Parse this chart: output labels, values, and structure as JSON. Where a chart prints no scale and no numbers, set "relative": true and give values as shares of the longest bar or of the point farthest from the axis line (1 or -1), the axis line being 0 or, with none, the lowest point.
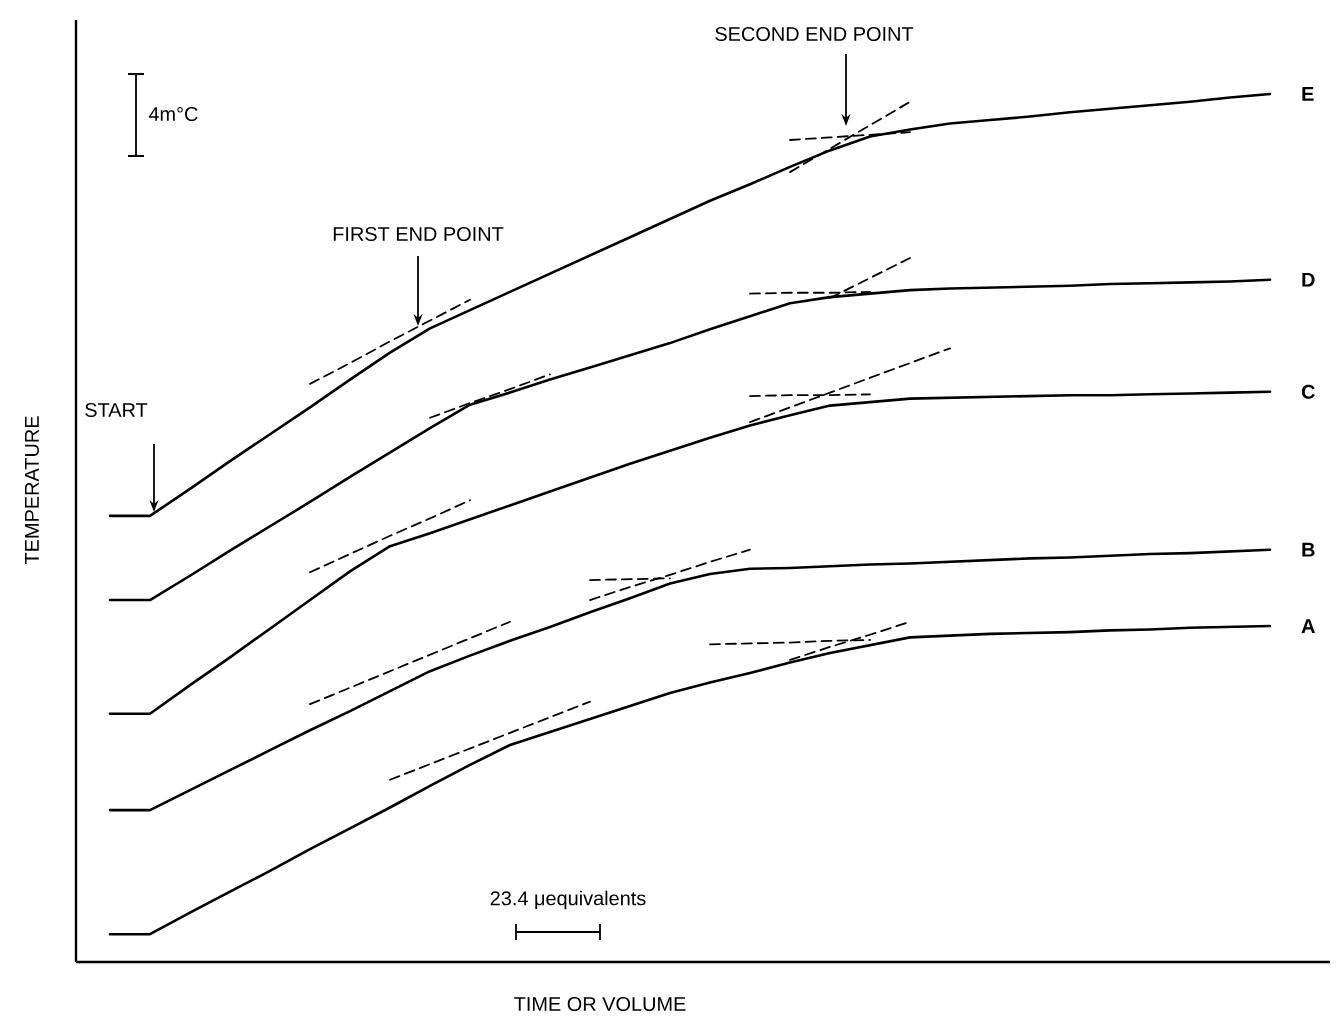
{
  "chart_data": {
    "type": "line",
    "relative": true,
    "xlabel": "TIME OR VOLUME",
    "ylabel": "TEMPERATURE",
    "line_style": "solid",
    "categories": [
      null,
      null,
      null,
      null,
      null,
      null,
      null,
      null,
      null,
      null,
      null,
      null,
      null,
      null,
      null,
      null,
      null,
      null,
      null,
      null,
      null,
      null,
      null,
      null,
      null,
      null,
      null,
      null,
      null,
      null
    ],
    "annotations": [
      "4m°C",
      "START",
      "FIRST END POINT",
      "SECOND END POINT",
      "23.4 μequivalents"
    ],
    "series": [
      {
        "name": "A",
        "color": "#000000",
        "values": [
          0.032,
          0.032,
          0.057,
          0.081,
          0.105,
          0.13,
          0.154,
          0.178,
          0.203,
          0.227,
          0.25,
          0.265,
          0.28,
          0.295,
          0.31,
          0.322,
          0.333,
          0.345,
          0.356,
          0.365,
          0.374,
          0.376,
          0.378,
          0.379,
          0.38,
          0.382,
          0.383,
          0.385,
          0.386,
          0.387
        ]
      },
      {
        "name": "B",
        "color": "#000000",
        "values": [
          0.175,
          0.175,
          0.198,
          0.221,
          0.244,
          0.267,
          0.289,
          0.312,
          0.335,
          0.353,
          0.37,
          0.386,
          0.403,
          0.419,
          0.436,
          0.447,
          0.453,
          0.454,
          0.456,
          0.458,
          0.459,
          0.461,
          0.463,
          0.465,
          0.466,
          0.468,
          0.47,
          0.471,
          0.473,
          0.475
        ]
      },
      {
        "name": "C",
        "color": "#000000",
        "values": [
          0.286,
          0.286,
          0.319,
          0.351,
          0.384,
          0.417,
          0.45,
          0.479,
          0.494,
          0.51,
          0.526,
          0.542,
          0.558,
          0.574,
          0.589,
          0.604,
          0.618,
          0.63,
          0.641,
          0.645,
          0.649,
          0.65,
          0.651,
          0.652,
          0.653,
          0.653,
          0.654,
          0.655,
          0.656,
          0.657
        ]
      },
      {
        "name": "D",
        "color": "#000000",
        "values": [
          0.417,
          0.417,
          0.445,
          0.474,
          0.502,
          0.53,
          0.559,
          0.587,
          0.615,
          0.642,
          0.656,
          0.671,
          0.685,
          0.699,
          0.713,
          0.729,
          0.744,
          0.759,
          0.766,
          0.77,
          0.774,
          0.776,
          0.777,
          0.778,
          0.779,
          0.781,
          0.782,
          0.783,
          0.784,
          0.786
        ]
      },
      {
        "name": "E",
        "color": "#000000",
        "values": [
          0.514,
          0.514,
          0.545,
          0.577,
          0.608,
          0.639,
          0.671,
          0.702,
          0.73,
          0.751,
          0.772,
          0.793,
          0.814,
          0.835,
          0.856,
          0.877,
          0.896,
          0.916,
          0.935,
          0.951,
          0.959,
          0.966,
          0.97,
          0.974,
          0.979,
          0.983,
          0.987,
          0.991,
          0.996,
          1
        ]
      },
      {
        "color": "#000000",
        "line_style": "dashed",
        "values": [
          null,
          null,
          null,
          null,
          null,
          0.666,
          0.69,
          0.715,
          0.739,
          0.763,
          null,
          null,
          null,
          null,
          null,
          null,
          null,
          null,
          null,
          null,
          null,
          null,
          null,
          null,
          null,
          null,
          null,
          null,
          null,
          null
        ]
      },
      {
        "color": "#000000",
        "line_style": "dashed",
        "values": [
          null,
          null,
          null,
          null,
          null,
          null,
          null,
          null,
          null,
          null,
          null,
          null,
          null,
          null,
          null,
          null,
          null,
          0.947,
          0.95,
          0.953,
          0.956,
          null,
          null,
          null,
          null,
          null,
          null,
          null,
          null,
          null
        ]
      },
      {
        "color": "#000000",
        "line_style": "dashed",
        "values": [
          null,
          null,
          null,
          null,
          null,
          null,
          null,
          null,
          null,
          null,
          null,
          null,
          null,
          null,
          null,
          null,
          null,
          0.91,
          0.937,
          0.964,
          0.991,
          null,
          null,
          null,
          null,
          null,
          null,
          null,
          null,
          null
        ]
      },
      {
        "color": "#000000",
        "line_style": "dashed",
        "values": [
          null,
          null,
          null,
          null,
          null,
          null,
          null,
          null,
          0.627,
          0.644,
          0.66,
          0.677,
          null,
          null,
          null,
          null,
          null,
          null,
          null,
          null,
          null,
          null,
          null,
          null,
          null,
          null,
          null,
          null,
          null,
          null
        ]
      },
      {
        "color": "#000000",
        "line_style": "dashed",
        "values": [
          null,
          null,
          null,
          null,
          null,
          null,
          null,
          null,
          null,
          null,
          null,
          null,
          null,
          null,
          null,
          null,
          0.77,
          0.771,
          0.771,
          0.772,
          null,
          null,
          null,
          null,
          null,
          null,
          null,
          null,
          null,
          null
        ]
      },
      {
        "color": "#000000",
        "line_style": "dashed",
        "values": [
          null,
          null,
          null,
          null,
          null,
          null,
          null,
          null,
          null,
          null,
          null,
          null,
          null,
          null,
          null,
          null,
          null,
          null,
          0.765,
          0.788,
          0.811,
          null,
          null,
          null,
          null,
          null,
          null,
          null,
          null,
          null
        ]
      },
      {
        "color": "#000000",
        "line_style": "dashed",
        "values": [
          null,
          null,
          null,
          null,
          null,
          0.449,
          0.47,
          0.491,
          0.511,
          0.532,
          null,
          null,
          null,
          null,
          null,
          null,
          null,
          null,
          null,
          null,
          null,
          null,
          null,
          null,
          null,
          null,
          null,
          null,
          null,
          null
        ]
      },
      {
        "color": "#000000",
        "line_style": "dashed",
        "values": [
          null,
          null,
          null,
          null,
          null,
          null,
          null,
          null,
          null,
          null,
          null,
          null,
          null,
          null,
          null,
          null,
          0.652,
          0.653,
          0.653,
          0.654,
          null,
          null,
          null,
          null,
          null,
          null,
          null,
          null,
          null,
          null
        ]
      },
      {
        "color": "#000000",
        "line_style": "dashed",
        "values": [
          null,
          null,
          null,
          null,
          null,
          null,
          null,
          null,
          null,
          null,
          null,
          null,
          null,
          null,
          null,
          null,
          0.622,
          0.639,
          0.656,
          0.673,
          0.69,
          0.707,
          null,
          null,
          null,
          null,
          null,
          null,
          null,
          null
        ]
      },
      {
        "color": "#000000",
        "line_style": "dashed",
        "values": [
          null,
          null,
          null,
          null,
          null,
          0.297,
          0.316,
          0.335,
          0.354,
          0.373,
          0.392,
          null,
          null,
          null,
          null,
          null,
          null,
          null,
          null,
          null,
          null,
          null,
          null,
          null,
          null,
          null,
          null,
          null,
          null,
          null
        ]
      },
      {
        "color": "#000000",
        "line_style": "dashed",
        "values": [
          null,
          null,
          null,
          null,
          null,
          null,
          null,
          null,
          null,
          null,
          null,
          null,
          0.44,
          0.441,
          0.442,
          null,
          null,
          null,
          null,
          null,
          null,
          null,
          null,
          null,
          null,
          null,
          null,
          null,
          null,
          null
        ]
      },
      {
        "color": "#000000",
        "line_style": "dashed",
        "values": [
          null,
          null,
          null,
          null,
          null,
          null,
          null,
          null,
          null,
          null,
          null,
          null,
          0.417,
          0.432,
          0.446,
          0.461,
          0.475,
          null,
          null,
          null,
          null,
          null,
          null,
          null,
          null,
          null,
          null,
          null,
          null,
          null
        ]
      },
      {
        "color": "#000000",
        "line_style": "dashed",
        "values": [
          null,
          null,
          null,
          null,
          null,
          null,
          null,
          0.21,
          0.228,
          0.246,
          0.264,
          0.282,
          0.3,
          null,
          null,
          null,
          null,
          null,
          null,
          null,
          null,
          null,
          null,
          null,
          null,
          null,
          null,
          null,
          null,
          null
        ]
      },
      {
        "color": "#000000",
        "line_style": "dashed",
        "values": [
          null,
          null,
          null,
          null,
          null,
          null,
          null,
          null,
          null,
          null,
          null,
          null,
          null,
          null,
          null,
          0.366,
          0.367,
          0.368,
          0.37,
          0.371,
          null,
          null,
          null,
          null,
          null,
          null,
          null,
          null,
          null,
          null
        ]
      },
      {
        "color": "#000000",
        "line_style": "dashed",
        "values": [
          null,
          null,
          null,
          null,
          null,
          null,
          null,
          null,
          null,
          null,
          null,
          null,
          null,
          null,
          null,
          null,
          null,
          0.348,
          0.363,
          0.377,
          0.392,
          null,
          null,
          null,
          null,
          null,
          null,
          null,
          null,
          null
        ]
      }
    ]
  }
}
